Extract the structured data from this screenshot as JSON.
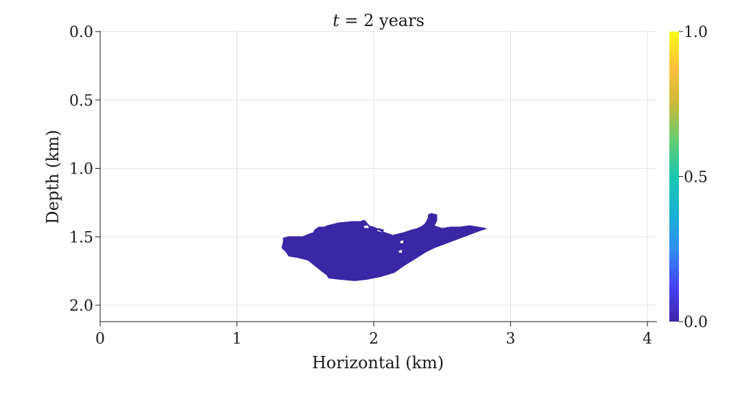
{
  "chart_data": {
    "type": "heatmap",
    "title": "t = 2 years",
    "title_var": "t",
    "title_rest": " = 2 years",
    "xlabel": "Horizontal (km)",
    "ylabel": "Depth (km)",
    "xlim": [
      0,
      4.07
    ],
    "ylim": [
      0,
      2.12
    ],
    "y_inverted": true,
    "x_ticks": [
      0,
      1,
      2,
      3,
      4
    ],
    "x_tick_labels": [
      "0",
      "1",
      "2",
      "3",
      "4"
    ],
    "y_ticks": [
      0.0,
      0.5,
      1.0,
      1.5,
      2.0
    ],
    "y_tick_labels": [
      "0.0",
      "0.5",
      "1.0",
      "1.5",
      "2.0"
    ],
    "grid": true,
    "colorbar": {
      "range": [
        0,
        1
      ],
      "ticks": [
        0.0,
        0.5,
        1.0
      ],
      "tick_labels": [
        "0.0",
        "0.5",
        "1.0"
      ],
      "colormap": "parula",
      "colors": [
        "#3e26a8",
        "#4743f8",
        "#2f8ff0",
        "#19b2d3",
        "#1ac7b0",
        "#63cc74",
        "#cab93a",
        "#fcc13b",
        "#f9fb15"
      ]
    },
    "plume_color": "#3a27a6",
    "plume_value": 0.0,
    "plume_outline": [
      [
        1.34,
        1.51
      ],
      [
        1.38,
        1.5
      ],
      [
        1.48,
        1.5
      ],
      [
        1.53,
        1.48
      ],
      [
        1.56,
        1.47
      ],
      [
        1.57,
        1.45
      ],
      [
        1.6,
        1.43
      ],
      [
        1.64,
        1.43
      ],
      [
        1.66,
        1.42
      ],
      [
        1.74,
        1.4
      ],
      [
        1.84,
        1.39
      ],
      [
        1.9,
        1.39
      ],
      [
        1.93,
        1.38
      ],
      [
        1.95,
        1.4
      ],
      [
        1.96,
        1.42
      ],
      [
        2.0,
        1.43
      ],
      [
        2.08,
        1.47
      ],
      [
        2.14,
        1.49
      ],
      [
        2.18,
        1.48
      ],
      [
        2.22,
        1.47
      ],
      [
        2.28,
        1.45
      ],
      [
        2.32,
        1.44
      ],
      [
        2.36,
        1.42
      ],
      [
        2.38,
        1.4
      ],
      [
        2.4,
        1.36
      ],
      [
        2.4,
        1.34
      ],
      [
        2.42,
        1.33
      ],
      [
        2.46,
        1.34
      ],
      [
        2.46,
        1.38
      ],
      [
        2.44,
        1.42
      ],
      [
        2.5,
        1.44
      ],
      [
        2.56,
        1.43
      ],
      [
        2.63,
        1.43
      ],
      [
        2.7,
        1.42
      ],
      [
        2.76,
        1.43
      ],
      [
        2.82,
        1.44
      ],
      [
        2.76,
        1.46
      ],
      [
        2.68,
        1.49
      ],
      [
        2.6,
        1.52
      ],
      [
        2.52,
        1.55
      ],
      [
        2.44,
        1.58
      ],
      [
        2.38,
        1.61
      ],
      [
        2.3,
        1.66
      ],
      [
        2.22,
        1.71
      ],
      [
        2.15,
        1.76
      ],
      [
        2.05,
        1.79
      ],
      [
        1.95,
        1.81
      ],
      [
        1.86,
        1.82
      ],
      [
        1.75,
        1.81
      ],
      [
        1.67,
        1.8
      ],
      [
        1.66,
        1.78
      ],
      [
        1.62,
        1.75
      ],
      [
        1.57,
        1.71
      ],
      [
        1.52,
        1.67
      ],
      [
        1.44,
        1.65
      ],
      [
        1.38,
        1.64
      ],
      [
        1.36,
        1.61
      ],
      [
        1.33,
        1.58
      ],
      [
        1.34,
        1.54
      ]
    ],
    "plume_holes": [
      [
        [
          1.92,
          1.42
        ],
        [
          1.96,
          1.41
        ],
        [
          1.97,
          1.44
        ],
        [
          1.93,
          1.44
        ]
      ],
      [
        [
          2.03,
          1.44
        ],
        [
          2.07,
          1.45
        ],
        [
          2.06,
          1.47
        ],
        [
          2.02,
          1.46
        ]
      ],
      [
        [
          2.19,
          1.53
        ],
        [
          2.22,
          1.52
        ],
        [
          2.22,
          1.55
        ],
        [
          2.19,
          1.55
        ]
      ],
      [
        [
          2.18,
          1.6
        ],
        [
          2.21,
          1.59
        ],
        [
          2.21,
          1.62
        ],
        [
          2.18,
          1.62
        ]
      ]
    ]
  }
}
